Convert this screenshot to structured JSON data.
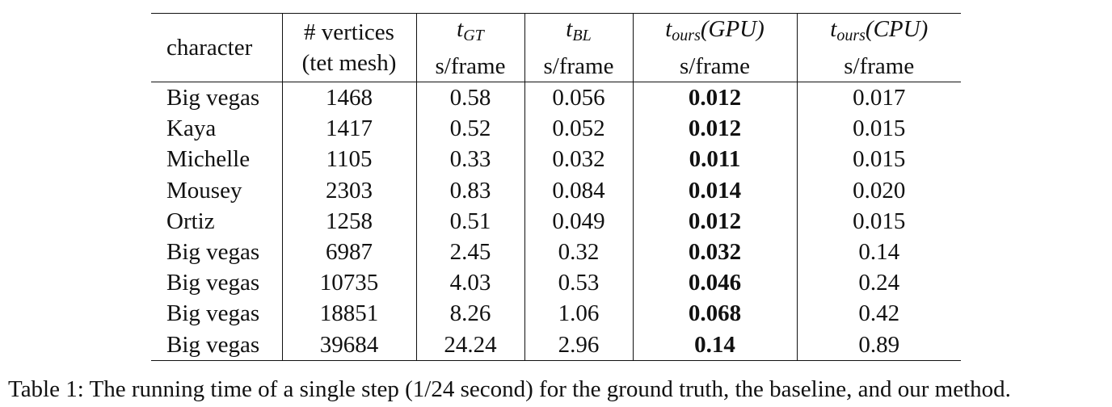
{
  "table": {
    "headers": [
      {
        "lines": [
          "character"
        ]
      },
      {
        "lines": [
          "# vertices",
          "(tet mesh)"
        ]
      },
      {
        "math": {
          "base": "t",
          "sub": "GT",
          "suffix": ""
        },
        "unit": "s/frame"
      },
      {
        "math": {
          "base": "t",
          "sub": "BL",
          "suffix": ""
        },
        "unit": "s/frame"
      },
      {
        "math": {
          "base": "t",
          "sub": "ours",
          "suffix": "(GPU)"
        },
        "unit": "s/frame"
      },
      {
        "math": {
          "base": "t",
          "sub": "ours",
          "suffix": "(CPU)"
        },
        "unit": "s/frame"
      }
    ],
    "rows": [
      [
        "Big vegas",
        "1468",
        "0.58",
        "0.056",
        "0.012",
        "0.017"
      ],
      [
        "Kaya",
        "1417",
        "0.52",
        "0.052",
        "0.012",
        "0.015"
      ],
      [
        "Michelle",
        "1105",
        "0.33",
        "0.032",
        "0.011",
        "0.015"
      ],
      [
        "Mousey",
        "2303",
        "0.83",
        "0.084",
        "0.014",
        "0.020"
      ],
      [
        "Ortiz",
        "1258",
        "0.51",
        "0.049",
        "0.012",
        "0.015"
      ],
      [
        "Big vegas",
        "6987",
        "2.45",
        "0.32",
        "0.032",
        "0.14"
      ],
      [
        "Big vegas",
        "10735",
        "4.03",
        "0.53",
        "0.046",
        "0.24"
      ],
      [
        "Big vegas",
        "18851",
        "8.26",
        "1.06",
        "0.068",
        "0.42"
      ],
      [
        "Big vegas",
        "39684",
        "24.24",
        "2.96",
        "0.14",
        "0.89"
      ]
    ],
    "bold_column": 4
  },
  "caption": "Table 1: The running time of a single step (1/24 second) for the ground truth, the baseline, and our method."
}
